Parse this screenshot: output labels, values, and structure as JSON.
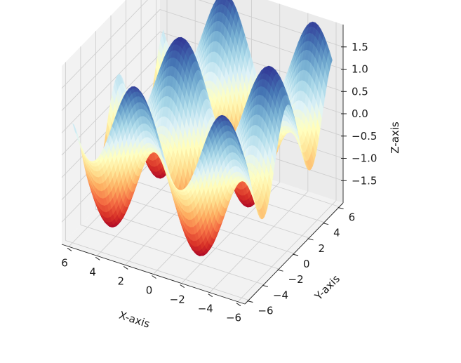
{
  "chart_data": {
    "type": "surface",
    "function": "sin(x) + cos(y)",
    "colormap": "RdYlBu",
    "grid": true,
    "x": {
      "label": "X-axis",
      "range": [
        -6.5,
        6.5
      ],
      "ticks": [
        -6,
        -4,
        -2,
        0,
        2,
        4,
        6
      ],
      "tick_labels": [
        "−6",
        "−4",
        "−2",
        "0",
        "2",
        "4",
        "6"
      ]
    },
    "y": {
      "label": "Y-axis",
      "range": [
        -6.5,
        6.5
      ],
      "ticks": [
        -6,
        -4,
        -2,
        0,
        2,
        4,
        6
      ],
      "tick_labels": [
        "−6",
        "−4",
        "−2",
        "0",
        "2",
        "4",
        "6"
      ]
    },
    "z": {
      "label": "Z-axis",
      "range": [
        -2,
        2
      ],
      "ticks": [
        -1.5,
        -1.0,
        -0.5,
        0.0,
        0.5,
        1.0,
        1.5
      ],
      "tick_labels": [
        "−1.5",
        "−1.0",
        "−0.5",
        "0.0",
        "0.5",
        "1.0",
        "1.5"
      ]
    }
  }
}
